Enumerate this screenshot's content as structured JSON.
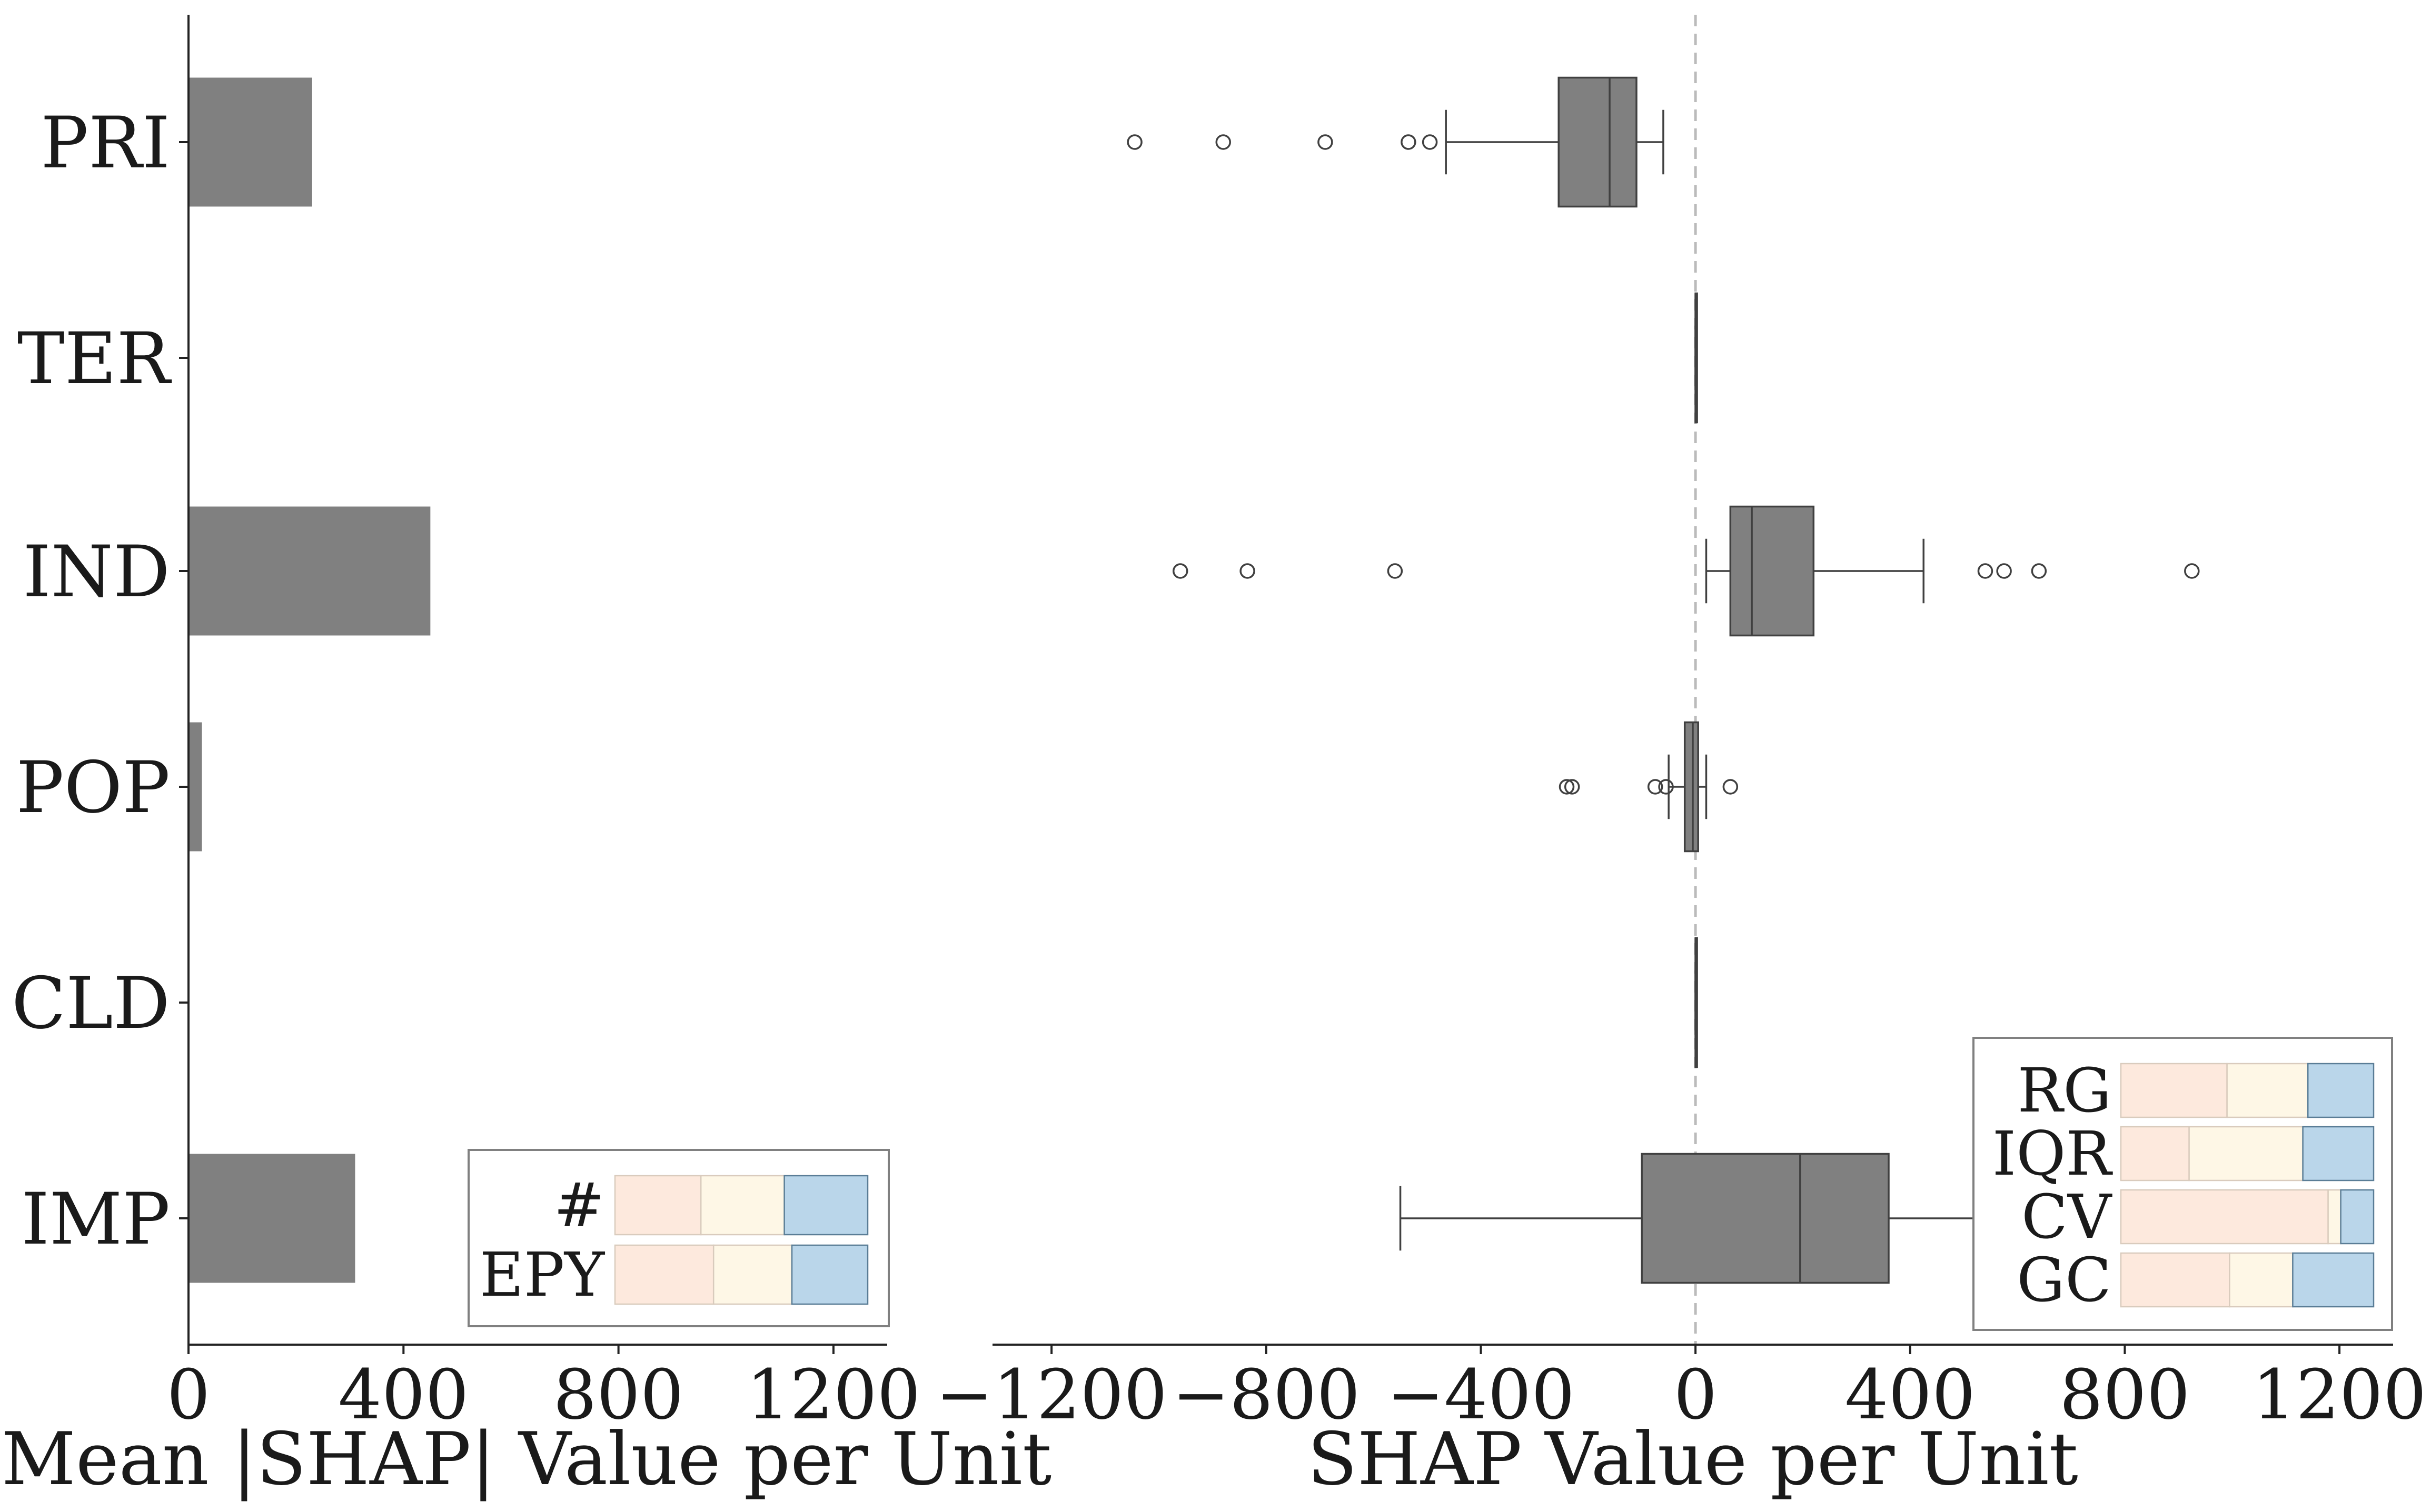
{
  "colors": {
    "bar": "#808080",
    "box": "#808080",
    "edge": "#404040",
    "zero_line": "#bbbbbb",
    "legend_low": "#fde9dd",
    "legend_mid": "#fef7e6",
    "legend_high": "#bad6ea",
    "legend_frame": "#808080"
  },
  "chart_data": [
    {
      "type": "bar",
      "orientation": "horizontal",
      "categories": [
        "PRI",
        "TER",
        "IND",
        "POP",
        "CLD",
        "IMP"
      ],
      "values": [
        230,
        0,
        450,
        25,
        0,
        310
      ],
      "xlabel": "Mean |SHAP| Value per Unit",
      "xlim": [
        0,
        1300
      ],
      "xticks": [
        0,
        400,
        800,
        1200
      ],
      "xtick_labels": [
        "0",
        "400",
        "800",
        "1200"
      ],
      "legend": {
        "placement": "lower-right",
        "rows": [
          {
            "label": "#",
            "segments": [
              0.34,
              0.33,
              0.33
            ]
          },
          {
            "label": "EPY",
            "segments": [
              0.39,
              0.31,
              0.3
            ]
          }
        ]
      }
    },
    {
      "type": "box",
      "orientation": "horizontal",
      "categories": [
        "PRI",
        "TER",
        "IND",
        "POP",
        "CLD",
        "IMP"
      ],
      "xlabel": "SHAP Value per Unit",
      "xlim": [
        -1310,
        1300
      ],
      "xticks": [
        -1200,
        -800,
        -400,
        0,
        400,
        800,
        1200
      ],
      "xtick_labels": [
        "−1200",
        "−800",
        "−400",
        "0",
        "400",
        "800",
        "1200"
      ],
      "reference_line": 0,
      "boxes": [
        {
          "category": "PRI",
          "whislo": -465,
          "q1": -255,
          "med": -160,
          "q3": -110,
          "whishi": -60,
          "fliers": [
            -1045,
            -880,
            -690,
            -535,
            -495
          ]
        },
        {
          "category": "TER",
          "whislo": 0,
          "q1": 0,
          "med": 0,
          "q3": 0,
          "whishi": 0,
          "fliers": []
        },
        {
          "category": "IND",
          "whislo": 20,
          "q1": 65,
          "med": 105,
          "q3": 220,
          "whishi": 425,
          "fliers": [
            -960,
            -835,
            -560,
            540,
            575,
            640,
            925
          ]
        },
        {
          "category": "POP",
          "whislo": -50,
          "q1": -20,
          "med": -5,
          "q3": 5,
          "whishi": 20,
          "fliers": [
            -240,
            -230,
            -75,
            -55,
            65
          ]
        },
        {
          "category": "CLD",
          "whislo": 0,
          "q1": 0,
          "med": 0,
          "q3": 0,
          "whishi": 0,
          "fliers": []
        },
        {
          "category": "IMP",
          "whislo": -550,
          "q1": -100,
          "med": 195,
          "q3": 360,
          "whishi": 650,
          "fliers": []
        }
      ],
      "legend": {
        "placement": "lower-right",
        "rows": [
          {
            "label": "RG",
            "segments": [
              0.42,
              0.32,
              0.26
            ]
          },
          {
            "label": "IQR",
            "segments": [
              0.27,
              0.45,
              0.28
            ]
          },
          {
            "label": "CV",
            "segments": [
              0.82,
              0.05,
              0.13
            ]
          },
          {
            "label": "GC",
            "segments": [
              0.43,
              0.25,
              0.32
            ]
          }
        ]
      }
    }
  ]
}
